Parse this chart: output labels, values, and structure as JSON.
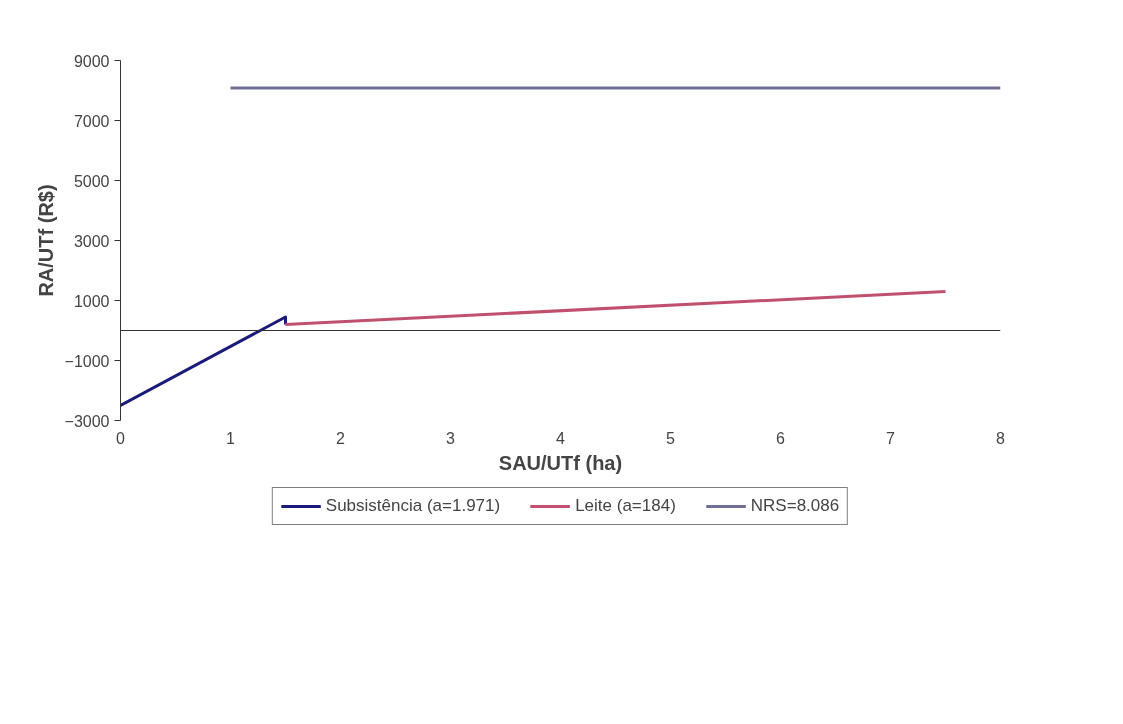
{
  "chart_data": {
    "type": "line",
    "xlabel": "SAU/UTf (ha)",
    "ylabel": "RA/UTf (R$)",
    "xlim": [
      0,
      8
    ],
    "xticks": [
      0,
      1,
      2,
      3,
      4,
      5,
      6,
      7,
      8
    ],
    "ylim": [
      -3000,
      9000
    ],
    "yticks": [
      -3000,
      -1000,
      1000,
      3000,
      5000,
      7000,
      9000
    ],
    "grid": false,
    "legend": "bottom",
    "line_style": "solid",
    "series": [
      {
        "name": "Subsistência (a=1.971)",
        "color": "#1a1a7a",
        "x": [
          0,
          1.5,
          1.5
        ],
        "values": [
          -2500,
          450,
          200
        ]
      },
      {
        "name": "Leite (a=184)",
        "color": "#c0506e",
        "x": [
          1.5,
          7.5
        ],
        "values": [
          200,
          1300
        ]
      },
      {
        "name": "NRS=8.086",
        "color": "#6e6e96",
        "x": [
          1,
          8
        ],
        "values": [
          8086,
          8086
        ]
      }
    ]
  }
}
